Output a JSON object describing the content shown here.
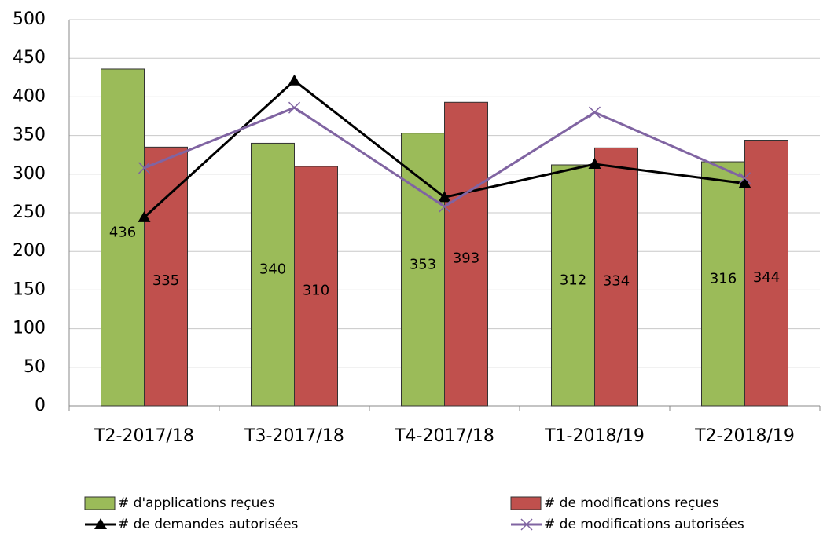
{
  "chart_data": {
    "type": "bar",
    "categories": [
      "T2-2017/18",
      "T3-2017/18",
      "T4-2017/18",
      "T1-2018/19",
      "T2-2018/19"
    ],
    "series": [
      {
        "name": "# d'applications reçues",
        "type": "bar",
        "color": "#9bbb59",
        "values": [
          436,
          340,
          353,
          312,
          316
        ]
      },
      {
        "name": "# de modifications reçues",
        "type": "bar",
        "color": "#c0504d",
        "values": [
          335,
          310,
          393,
          334,
          344
        ]
      },
      {
        "name": "# de demandes autorisées",
        "type": "line",
        "marker": "triangle",
        "color": "#000000",
        "values": [
          244,
          421,
          270,
          313,
          288
        ]
      },
      {
        "name": "# de modifications autorisées",
        "type": "line",
        "marker": "x",
        "color": "#8064a2",
        "values": [
          308,
          386,
          258,
          380,
          295
        ]
      }
    ],
    "ylim": [
      0,
      500
    ],
    "yticks": [
      0,
      50,
      100,
      150,
      200,
      250,
      300,
      350,
      400,
      450,
      500
    ],
    "grid": true,
    "legend": "bottom"
  }
}
